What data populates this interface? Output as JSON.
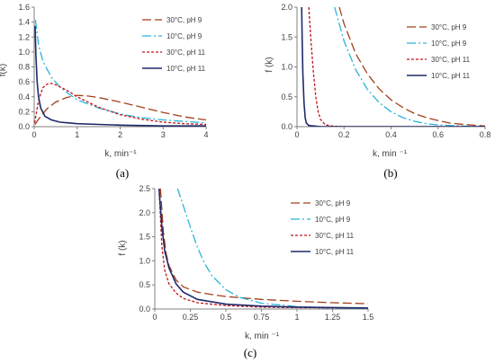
{
  "style": {
    "colors": {
      "30C_pH9": "#a0401a",
      "10C_pH9": "#2ab4d8",
      "30C_pH11": "#c0141a",
      "10C_pH11": "#1f2a6a",
      "axis": "#808080",
      "text": "#404040"
    },
    "dashes": {
      "30C_pH9": "10,4",
      "10C_pH9": "10,3,2,3",
      "30C_pH11": "3,2",
      "10C_pH11": ""
    }
  },
  "chart_data": [
    {
      "id": "a",
      "type": "line",
      "panel_label": "(a)",
      "xlabel": "k, min⁻¹",
      "ylabel": "f(k)",
      "xlim": [
        0,
        4
      ],
      "ylim": [
        0,
        1.6
      ],
      "xticks": [
        "0",
        "1",
        "2",
        "3",
        "4"
      ],
      "xtick_values": [
        0,
        1,
        2,
        3,
        4
      ],
      "yticks": [
        "0.0",
        "0.2",
        "0.4",
        "0.6",
        "0.8",
        "1.0",
        "1.2",
        "1.4",
        "1.6"
      ],
      "ytick_values": [
        0,
        0.2,
        0.4,
        0.6,
        0.8,
        1.0,
        1.2,
        1.4,
        1.6
      ],
      "legend_position": "top-right",
      "series": [
        {
          "name": "30°C, pH 9",
          "key": "30C_pH9",
          "x": [
            0.02,
            0.1,
            0.3,
            0.5,
            0.75,
            1.0,
            1.25,
            1.5,
            2.0,
            2.5,
            3.0,
            3.5,
            4.0
          ],
          "y": [
            0.03,
            0.1,
            0.24,
            0.33,
            0.39,
            0.42,
            0.41,
            0.39,
            0.33,
            0.26,
            0.19,
            0.13,
            0.09
          ]
        },
        {
          "name": "10°C, pH 9",
          "key": "10C_pH9",
          "x": [
            0.03,
            0.1,
            0.2,
            0.4,
            0.6,
            0.8,
            1.0,
            1.5,
            2.0,
            2.5,
            3.0,
            3.5,
            4.0
          ],
          "y": [
            1.43,
            1.1,
            0.88,
            0.66,
            0.53,
            0.44,
            0.36,
            0.25,
            0.17,
            0.12,
            0.09,
            0.07,
            0.05
          ]
        },
        {
          "name": "30°C, pH 11",
          "key": "30C_pH11",
          "x": [
            0.01,
            0.1,
            0.2,
            0.3,
            0.4,
            0.5,
            0.75,
            1.0,
            1.5,
            2.0,
            2.5,
            3.0,
            3.5,
            4.0
          ],
          "y": [
            0.05,
            0.35,
            0.52,
            0.57,
            0.58,
            0.56,
            0.49,
            0.4,
            0.26,
            0.16,
            0.1,
            0.06,
            0.04,
            0.03
          ]
        },
        {
          "name": "10°C, pH 11",
          "key": "10C_pH11",
          "x": [
            0.02,
            0.04,
            0.07,
            0.1,
            0.15,
            0.25,
            0.4,
            0.6,
            0.8,
            1.0,
            1.5,
            2.0,
            3.0,
            4.0
          ],
          "y": [
            1.35,
            0.95,
            0.6,
            0.4,
            0.25,
            0.14,
            0.09,
            0.06,
            0.05,
            0.04,
            0.03,
            0.02,
            0.01,
            0.01
          ]
        }
      ]
    },
    {
      "id": "b",
      "type": "line",
      "panel_label": "(b)",
      "xlabel": "k, min ⁻¹",
      "ylabel": "f (k)",
      "xlim": [
        0,
        0.8
      ],
      "ylim": [
        0,
        2.0
      ],
      "xticks": [
        "0",
        "0.2",
        "0.4",
        "0.6",
        "0.8"
      ],
      "xtick_values": [
        0,
        0.2,
        0.4,
        0.6,
        0.8
      ],
      "yticks": [
        "0.0",
        "0.5",
        "1.0",
        "1.5",
        "2.0"
      ],
      "ytick_values": [
        0,
        0.5,
        1.0,
        1.5,
        2.0
      ],
      "legend_position": "top-right",
      "series": [
        {
          "name": "30°C, pH 9",
          "key": "30C_pH9",
          "x": [
            0.18,
            0.2,
            0.25,
            0.3,
            0.35,
            0.4,
            0.45,
            0.5,
            0.55,
            0.6,
            0.65,
            0.7,
            0.8
          ],
          "y": [
            2.0,
            1.72,
            1.22,
            0.88,
            0.63,
            0.45,
            0.32,
            0.22,
            0.15,
            0.1,
            0.06,
            0.04,
            0.01
          ]
        },
        {
          "name": "10°C, pH 9",
          "key": "10C_pH9",
          "x": [
            0.16,
            0.2,
            0.25,
            0.3,
            0.35,
            0.4,
            0.45,
            0.5,
            0.55,
            0.6,
            0.7,
            0.8
          ],
          "y": [
            2.0,
            1.43,
            0.95,
            0.62,
            0.4,
            0.25,
            0.15,
            0.09,
            0.05,
            0.03,
            0.01,
            0.0
          ]
        },
        {
          "name": "30°C, pH 11",
          "key": "30C_pH11",
          "x": [
            0.05,
            0.06,
            0.07,
            0.08,
            0.09,
            0.1,
            0.12,
            0.15,
            0.2,
            0.8
          ],
          "y": [
            2.0,
            1.4,
            0.9,
            0.5,
            0.25,
            0.12,
            0.03,
            0.01,
            0.0,
            0.0
          ]
        },
        {
          "name": "10°C, pH 11",
          "key": "10C_pH11",
          "x": [
            0.02,
            0.022,
            0.025,
            0.03,
            0.035,
            0.04,
            0.05,
            0.1,
            0.8
          ],
          "y": [
            2.0,
            1.5,
            0.9,
            0.4,
            0.15,
            0.06,
            0.02,
            0.0,
            0.0
          ]
        }
      ]
    },
    {
      "id": "c",
      "type": "line",
      "panel_label": "(c)",
      "xlabel": "k, min ⁻¹",
      "ylabel": "f (k)",
      "xlim": [
        0,
        1.5
      ],
      "ylim": [
        0,
        2.5
      ],
      "xticks": [
        "0",
        "0.25",
        "0.5",
        "0.75",
        "1",
        "1.25",
        "1.5"
      ],
      "xtick_values": [
        0,
        0.25,
        0.5,
        0.75,
        1.0,
        1.25,
        1.5
      ],
      "yticks": [
        "0.0",
        "0.5",
        "1.0",
        "1.5",
        "2.0",
        "2.5"
      ],
      "ytick_values": [
        0,
        0.5,
        1.0,
        1.5,
        2.0,
        2.5
      ],
      "legend_position": "top-right",
      "series": [
        {
          "name": "30°C, pH 9",
          "key": "30C_pH9",
          "x": [
            0.04,
            0.06,
            0.08,
            0.1,
            0.15,
            0.2,
            0.3,
            0.4,
            0.5,
            0.75,
            1.0,
            1.25,
            1.5
          ],
          "y": [
            2.5,
            1.6,
            1.15,
            0.9,
            0.6,
            0.46,
            0.35,
            0.3,
            0.26,
            0.2,
            0.16,
            0.13,
            0.11
          ]
        },
        {
          "name": "10°C, pH 9",
          "key": "10C_pH9",
          "x": [
            0.16,
            0.2,
            0.25,
            0.3,
            0.35,
            0.4,
            0.5,
            0.6,
            0.75,
            1.0,
            1.25,
            1.5
          ],
          "y": [
            2.5,
            2.15,
            1.7,
            1.28,
            0.95,
            0.7,
            0.4,
            0.24,
            0.12,
            0.05,
            0.02,
            0.01
          ]
        },
        {
          "name": "30°C, pH 11",
          "key": "30C_pH11",
          "x": [
            0.03,
            0.05,
            0.07,
            0.1,
            0.15,
            0.2,
            0.3,
            0.5,
            0.75,
            1.0,
            1.5
          ],
          "y": [
            2.5,
            1.3,
            0.8,
            0.52,
            0.33,
            0.22,
            0.13,
            0.07,
            0.04,
            0.03,
            0.02
          ]
        },
        {
          "name": "10°C, pH 11",
          "key": "10C_pH11",
          "x": [
            0.03,
            0.05,
            0.07,
            0.1,
            0.15,
            0.2,
            0.3,
            0.5,
            0.75,
            1.0,
            1.5
          ],
          "y": [
            2.5,
            1.7,
            1.2,
            0.85,
            0.52,
            0.35,
            0.2,
            0.1,
            0.06,
            0.04,
            0.02
          ]
        }
      ]
    }
  ]
}
